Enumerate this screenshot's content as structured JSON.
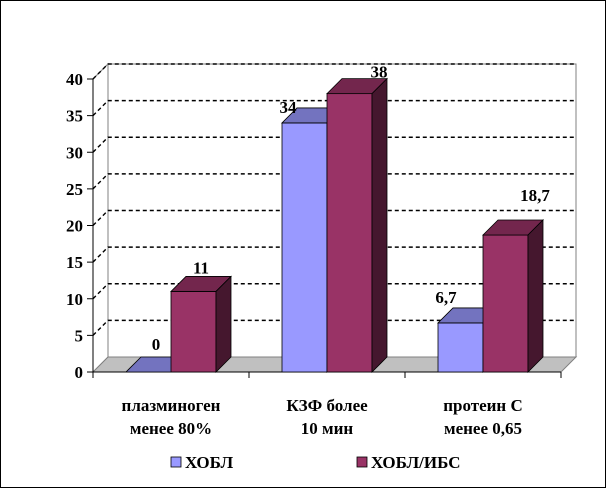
{
  "chart_data": {
    "type": "bar",
    "style": "3d-clustered-column",
    "categories": [
      [
        "плазминоген",
        "менее 80%"
      ],
      [
        "КЗФ более",
        "10 мин"
      ],
      [
        "протеин С",
        "менее 0,65"
      ]
    ],
    "series": [
      {
        "name": "ХОБЛ",
        "values": [
          0,
          34,
          6.7
        ],
        "labels": [
          "0",
          "34",
          "6,7"
        ],
        "color": "#9999ff"
      },
      {
        "name": "ХОБЛ/ИБС",
        "values": [
          11,
          38,
          18.7
        ],
        "labels": [
          "11",
          "38",
          "18,7"
        ],
        "color": "#993366"
      }
    ],
    "yticks": [
      "0",
      "5",
      "10",
      "15",
      "20",
      "25",
      "30",
      "35",
      "40"
    ],
    "ylim": [
      0,
      40
    ],
    "grid": "dashed-horizontal",
    "legend": "bottom"
  }
}
